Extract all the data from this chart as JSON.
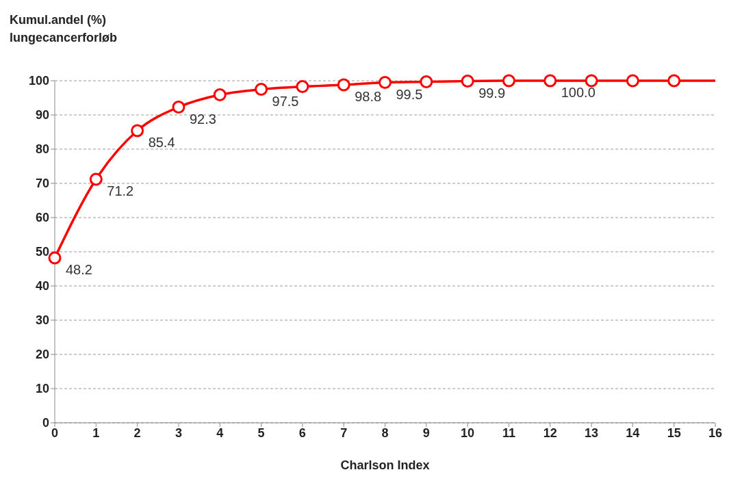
{
  "chart_data": {
    "type": "line",
    "ylabel": "Kumul.andel (%)\nlungecancerforløb",
    "xlabel": "Charlson Index",
    "xlim": [
      0,
      16
    ],
    "xticks": [
      0,
      1,
      2,
      3,
      4,
      5,
      6,
      7,
      8,
      9,
      10,
      11,
      12,
      13,
      14,
      15,
      16
    ],
    "ylim": [
      0,
      100
    ],
    "yticks": [
      0,
      10,
      20,
      30,
      40,
      50,
      60,
      70,
      80,
      90,
      100
    ],
    "grid": "y",
    "series": [
      {
        "color": "#ff0000",
        "marker": "circle",
        "x": [
          0,
          1,
          2,
          3,
          4,
          5,
          6,
          7,
          8,
          9,
          10,
          11,
          12,
          13,
          14,
          15
        ],
        "values": [
          48.2,
          71.2,
          85.4,
          92.3,
          95.9,
          97.5,
          98.3,
          98.8,
          99.5,
          99.7,
          99.9,
          100,
          100,
          100,
          100,
          100
        ],
        "value_labels": [
          "48.2",
          "71.2",
          "85.4",
          "92.3",
          null,
          "97.5",
          null,
          "98.8",
          "99.5",
          null,
          "99.9",
          null,
          "100.0",
          null,
          null,
          null
        ]
      },
      {
        "color": "#ff0000",
        "marker": "none",
        "x": [
          15,
          16
        ],
        "values": [
          100,
          100
        ]
      }
    ]
  }
}
